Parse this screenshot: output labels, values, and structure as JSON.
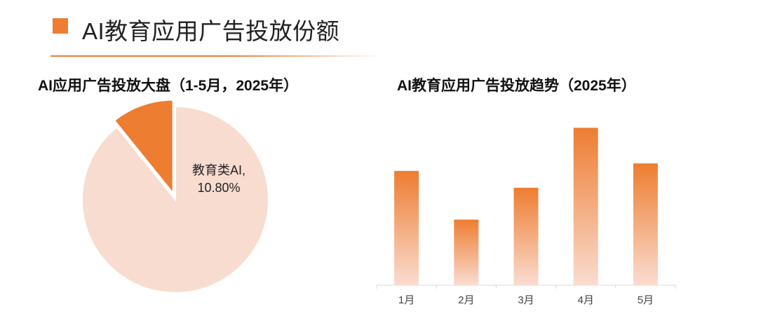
{
  "header": {
    "title": "AI教育应用广告投放份额",
    "accent_color": "#ED7D31"
  },
  "chart_data": [
    {
      "type": "pie",
      "title": "AI应用广告投放大盘（1-5月，2025年）",
      "slices": [
        {
          "label": "教育类AI",
          "value": 10.8,
          "display": "10.80%",
          "color": "#ED7D31",
          "exploded": true,
          "labeled": true
        },
        {
          "label": "",
          "value": 89.2,
          "color": "#F8DCD0",
          "exploded": false,
          "labeled": false
        }
      ],
      "start_angle_deg": 0,
      "direction": "counterclockwise",
      "label_lines": [
        "教育类AI,",
        "10.80%"
      ]
    },
    {
      "type": "bar",
      "title": "AI教育应用广告投放趋势（2025年）",
      "categories": [
        "1月",
        "2月",
        "3月",
        "4月",
        "5月"
      ],
      "values": [
        61,
        35,
        52,
        84,
        65
      ],
      "ylim": [
        0,
        92
      ],
      "axis_visible": false,
      "grid": false,
      "bar_gradient": [
        "#ED7D31",
        "#FADCD0"
      ]
    }
  ]
}
